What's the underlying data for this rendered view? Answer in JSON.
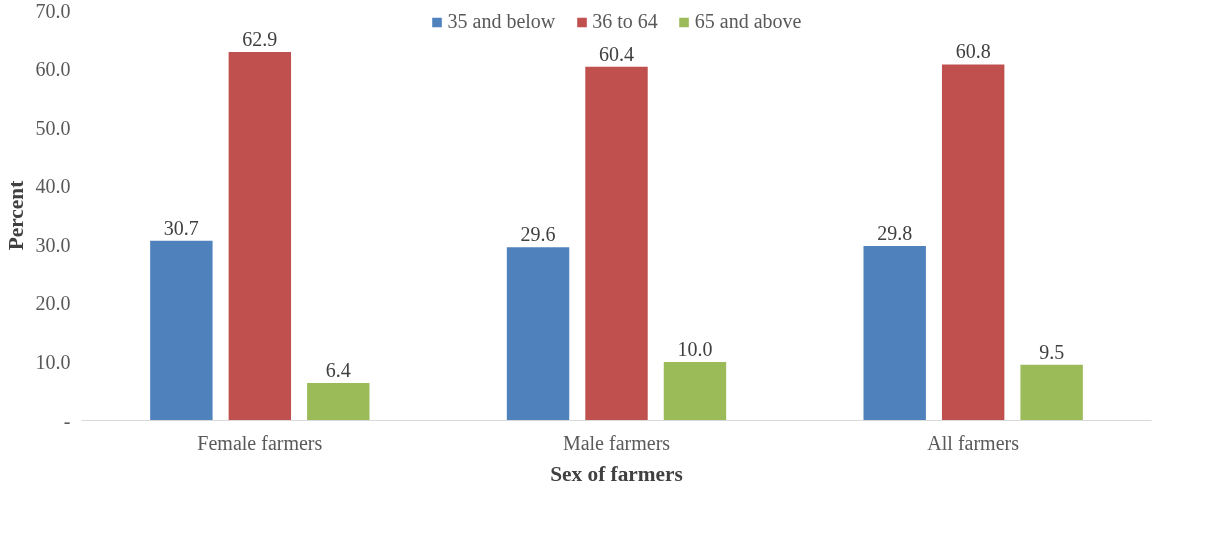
{
  "chart_data": {
    "type": "bar",
    "xlabel": "Sex of farmers",
    "ylabel": "Percent",
    "categories": [
      "Female farmers",
      "Male farmers",
      "All farmers"
    ],
    "series": [
      {
        "name": "35 and below",
        "color": "#4f81bd",
        "values": [
          30.7,
          29.6,
          29.8
        ],
        "value_labels": [
          "30.7",
          "29.6",
          "29.8"
        ]
      },
      {
        "name": "36 to 64",
        "color": "#c0504d",
        "values": [
          62.9,
          60.4,
          60.8
        ],
        "value_labels": [
          "62.9",
          "60.4",
          "60.8"
        ]
      },
      {
        "name": "65 and above",
        "color": "#9bbb59",
        "values": [
          6.4,
          10.0,
          9.5
        ],
        "value_labels": [
          "6.4",
          "10.0",
          "9.5"
        ]
      }
    ],
    "ylim": [
      0,
      70
    ],
    "yticks": [
      {
        "value": 0,
        "label": "-"
      },
      {
        "value": 10,
        "label": "10.0"
      },
      {
        "value": 20,
        "label": "20.0"
      },
      {
        "value": 30,
        "label": "30.0"
      },
      {
        "value": 40,
        "label": "40.0"
      },
      {
        "value": 50,
        "label": "50.0"
      },
      {
        "value": 60,
        "label": "60.0"
      },
      {
        "value": 70,
        "label": "70.0"
      }
    ],
    "grid": false,
    "legend": "top"
  }
}
